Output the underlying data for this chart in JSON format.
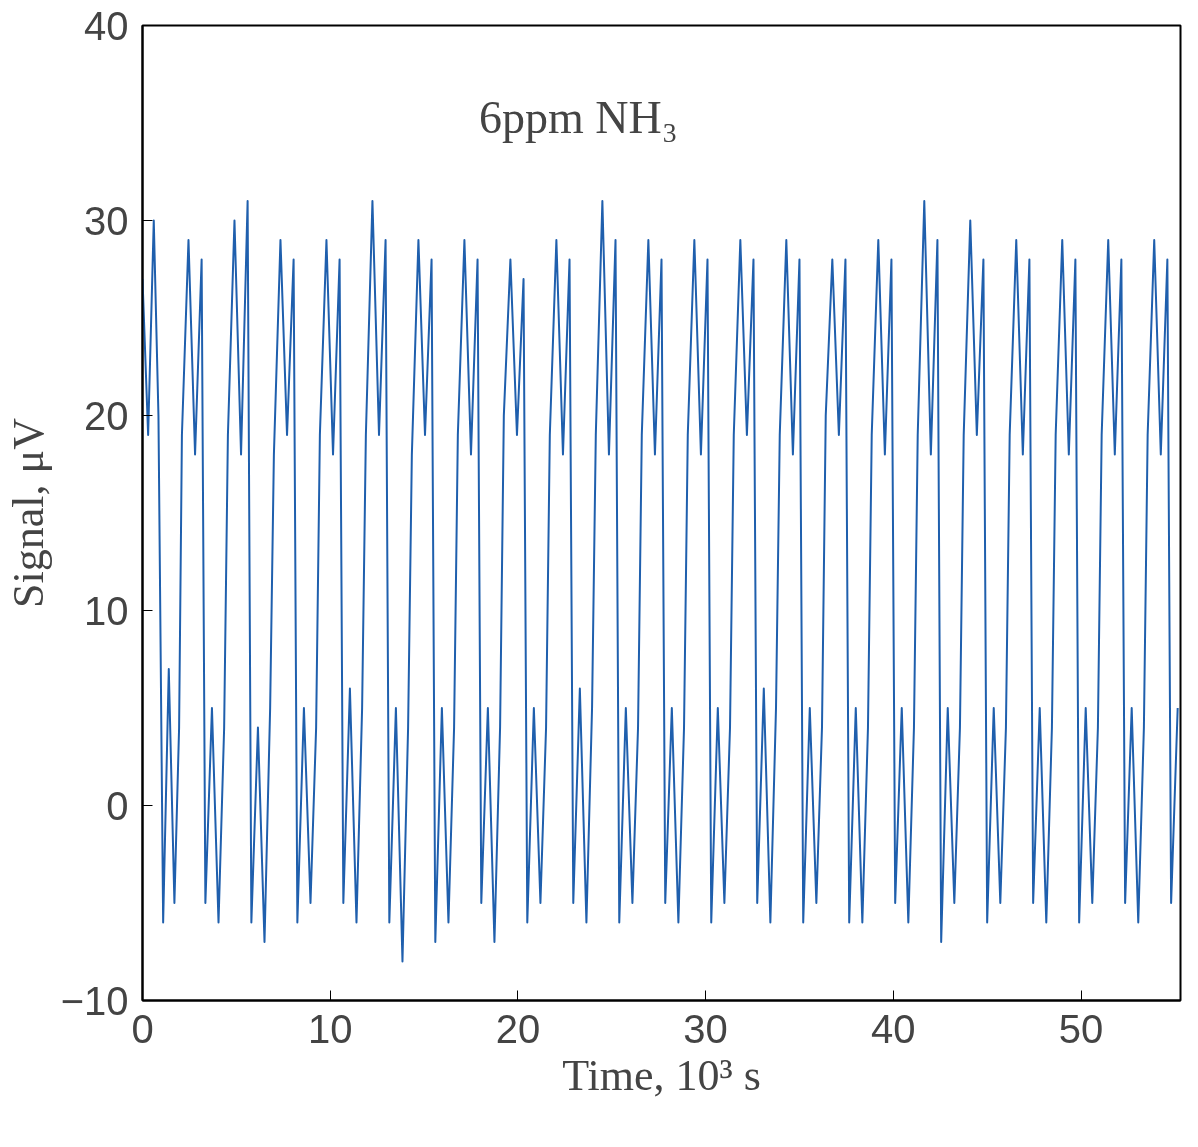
{
  "chart_data": {
    "type": "line",
    "xlabel": "Time, 10³ s",
    "ylabel": "Signal, μV",
    "annotations": [
      "6ppm NH₃"
    ],
    "xlim": [
      0,
      55.3
    ],
    "ylim": [
      -10,
      40
    ],
    "xticks": [
      0,
      10,
      20,
      30,
      40,
      50
    ],
    "yticks": [
      -10,
      0,
      10,
      20,
      30,
      40
    ],
    "marker": "none",
    "line_style": "solid",
    "series": [
      {
        "color": "#1f5fad",
        "x": [
          0,
          0.3,
          0.6,
          0.85,
          1.1,
          1.4,
          1.7,
          1.95,
          2.1,
          2.45,
          2.8,
          3.15,
          3.35,
          3.7,
          4.05,
          4.35,
          4.55,
          4.9,
          5.25,
          5.6,
          5.8,
          6.15,
          6.5,
          6.8,
          7.0,
          7.35,
          7.7,
          8.05,
          8.25,
          8.6,
          8.95,
          9.25,
          9.45,
          9.8,
          10.15,
          10.5,
          10.7,
          11.05,
          11.4,
          11.7,
          11.9,
          12.25,
          12.6,
          12.95,
          13.15,
          13.5,
          13.85,
          14.15,
          14.35,
          14.7,
          15.05,
          15.4,
          15.6,
          15.95,
          16.3,
          16.6,
          16.8,
          17.15,
          17.5,
          17.85,
          18.05,
          18.4,
          18.75,
          19.05,
          19.25,
          19.6,
          19.95,
          20.3,
          20.5,
          20.85,
          21.2,
          21.5,
          21.7,
          22.05,
          22.4,
          22.75,
          22.95,
          23.3,
          23.65,
          23.95,
          24.15,
          24.5,
          24.85,
          25.2,
          25.4,
          25.75,
          26.1,
          26.4,
          26.6,
          26.95,
          27.3,
          27.65,
          27.85,
          28.2,
          28.55,
          28.85,
          29.05,
          29.4,
          29.75,
          30.1,
          30.3,
          30.65,
          31.0,
          31.3,
          31.5,
          31.85,
          32.2,
          32.55,
          32.75,
          33.1,
          33.45,
          33.75,
          33.95,
          34.3,
          34.65,
          35.0,
          35.2,
          35.55,
          35.9,
          36.2,
          36.4,
          36.75,
          37.1,
          37.45,
          37.65,
          38.0,
          38.35,
          38.65,
          38.85,
          39.2,
          39.55,
          39.9,
          40.1,
          40.45,
          40.8,
          41.1,
          41.3,
          41.65,
          42.0,
          42.35,
          42.55,
          42.9,
          43.25,
          43.55,
          43.75,
          44.1,
          44.45,
          44.8,
          45.0,
          45.35,
          45.7,
          46.0,
          46.2,
          46.55,
          46.9,
          47.25,
          47.45,
          47.8,
          48.15,
          48.45,
          48.65,
          49.0,
          49.35,
          49.7,
          49.9,
          50.25,
          50.6,
          50.9,
          51.1,
          51.45,
          51.8,
          52.15,
          52.35,
          52.7,
          53.05,
          53.35,
          53.55,
          53.9,
          54.25,
          54.6,
          54.8,
          55.15
        ],
        "values": [
          27,
          19,
          30,
          20,
          -6,
          7,
          -5,
          4,
          19,
          29,
          18,
          28,
          -5,
          5,
          -6,
          4,
          19,
          30,
          18,
          31,
          -6,
          4,
          -7,
          5,
          18,
          29,
          19,
          28,
          -6,
          5,
          -5,
          4,
          19,
          29,
          18,
          28,
          -5,
          6,
          -6,
          5,
          19,
          31,
          19,
          29,
          -6,
          5,
          -8,
          4,
          18,
          29,
          19,
          28,
          -7,
          5,
          -6,
          4,
          19,
          29,
          18,
          28,
          -5,
          5,
          -7,
          4,
          20,
          28,
          19,
          27,
          -6,
          5,
          -5,
          4,
          19,
          29,
          18,
          28,
          -5,
          6,
          -6,
          5,
          19,
          31,
          18,
          29,
          -6,
          5,
          -5,
          4,
          19,
          29,
          18,
          28,
          -5,
          5,
          -6,
          4,
          19,
          29,
          18,
          28,
          -6,
          5,
          -5,
          4,
          19,
          29,
          19,
          28,
          -5,
          6,
          -6,
          5,
          19,
          29,
          18,
          28,
          -6,
          5,
          -5,
          4,
          20,
          28,
          19,
          28,
          -6,
          5,
          -6,
          4,
          19,
          29,
          18,
          28,
          -5,
          5,
          -6,
          4,
          19,
          31,
          18,
          29,
          -7,
          5,
          -5,
          4,
          19,
          30,
          19,
          28,
          -6,
          5,
          -5,
          4,
          19,
          29,
          18,
          28,
          -5,
          5,
          -6,
          4,
          19,
          29,
          18,
          28,
          -6,
          5,
          -5,
          4,
          19,
          29,
          18,
          28,
          -5,
          5,
          -6,
          4,
          19,
          29,
          18,
          28,
          -5,
          5
        ]
      }
    ]
  }
}
